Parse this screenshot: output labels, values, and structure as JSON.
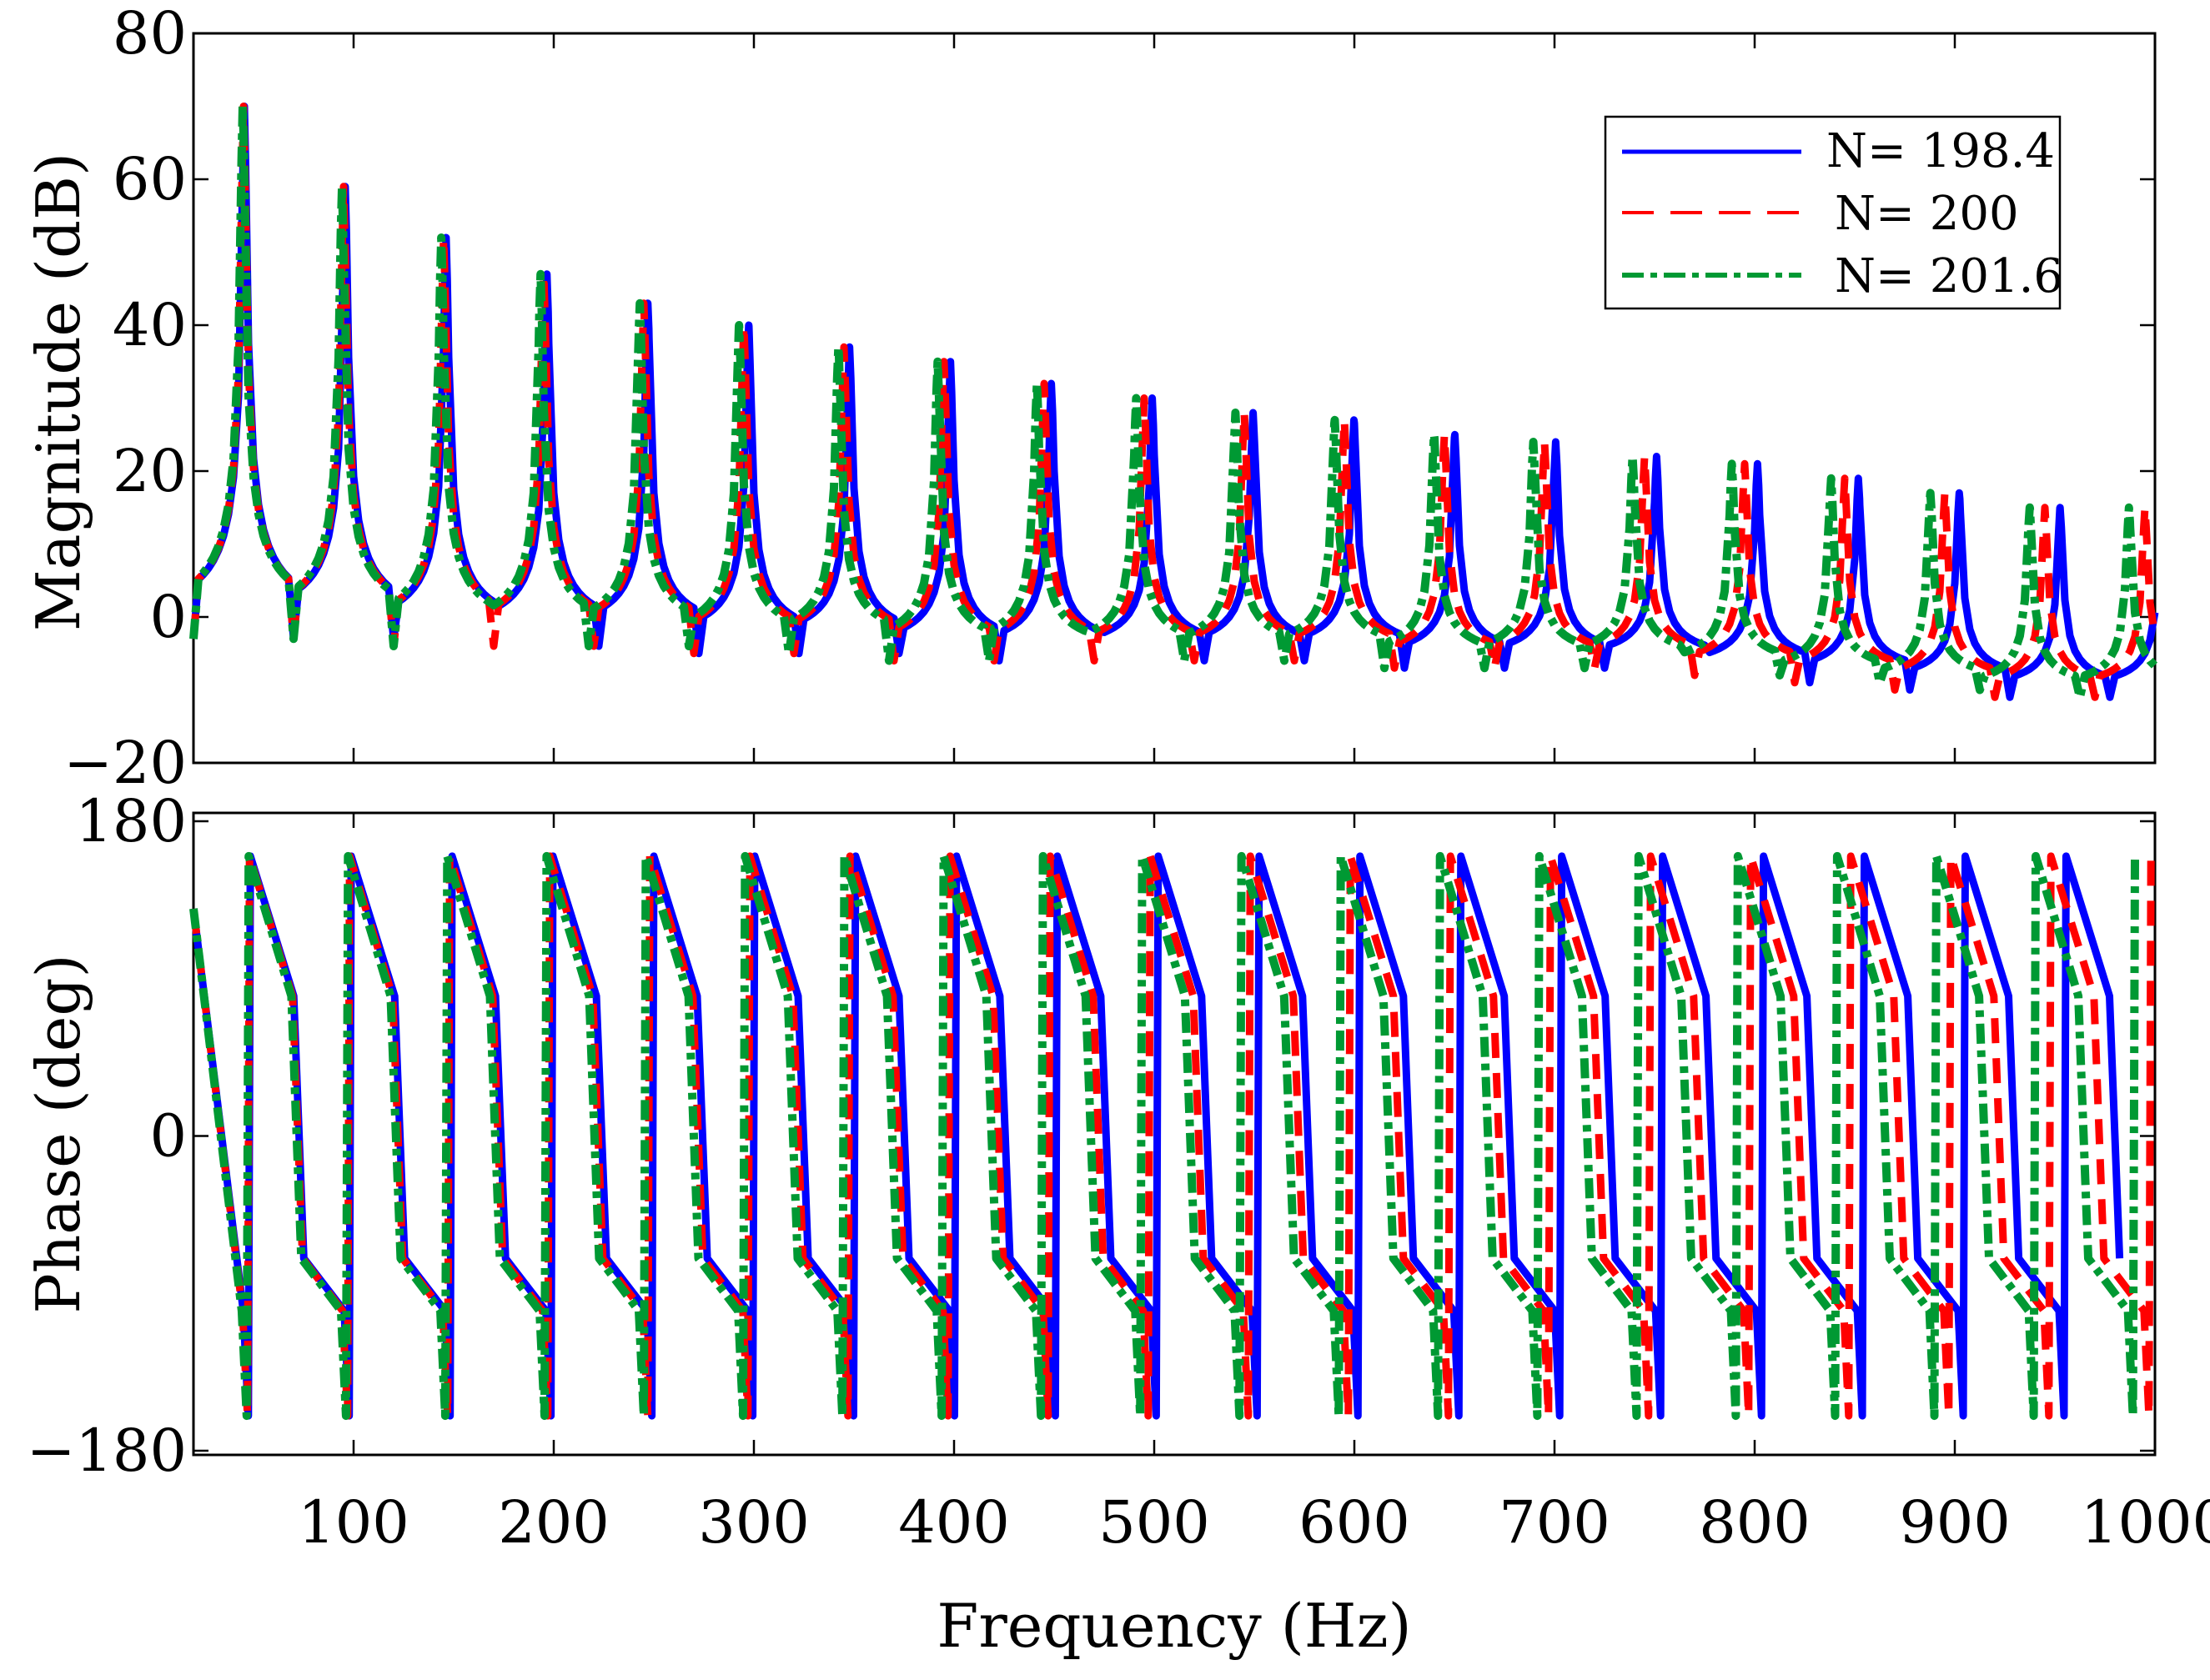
{
  "chart_data": [
    {
      "type": "line",
      "panel": "magnitude",
      "ylabel": "Magnitude  (dB)",
      "xlabel": "",
      "xlim": [
        20,
        1000
      ],
      "ylim": [
        -20,
        80
      ],
      "yticks": [
        -20,
        0,
        20,
        40,
        60,
        80
      ],
      "ytick_labels": [
        "−20",
        "0",
        "20",
        "40",
        "60",
        "80"
      ],
      "xticks": [
        100,
        200,
        300,
        400,
        500,
        600,
        700,
        800,
        900,
        1000
      ],
      "series": [
        {
          "name": "N= 198.4",
          "color": "#0000ff",
          "style": "solid",
          "resonance_spacing_hz": 50.4,
          "peak_db": [
            70,
            59,
            52,
            47,
            43,
            40,
            37,
            35,
            32,
            30,
            28,
            27,
            25,
            24,
            22,
            21,
            19,
            17,
            15
          ],
          "trough_db": [
            -3,
            -3,
            -3,
            -4,
            -4,
            -4,
            -5,
            -5,
            -6,
            -6,
            -6,
            -6,
            -6,
            -7,
            -7,
            -7,
            -8,
            -9,
            -10,
            -11
          ]
        },
        {
          "name": "N= 200",
          "color": "#ff0000",
          "style": "dashed",
          "resonance_spacing_hz": 50.0,
          "peak_db": [
            70,
            59,
            52,
            47,
            43,
            40,
            37,
            35,
            32,
            30,
            28,
            27,
            25,
            24,
            22,
            21,
            19,
            17,
            15
          ],
          "trough_db": [
            -3,
            -3,
            -3,
            -4,
            -4,
            -4,
            -5,
            -5,
            -6,
            -6,
            -6,
            -6,
            -6,
            -7,
            -7,
            -7,
            -8,
            -9,
            -10,
            -11
          ]
        },
        {
          "name": "N= 201.6",
          "color": "#009933",
          "style": "dashdot",
          "resonance_spacing_hz": 49.6,
          "peak_db": [
            70,
            59,
            52,
            47,
            43,
            40,
            37,
            35,
            32,
            30,
            28,
            27,
            25,
            24,
            22,
            21,
            19,
            17,
            15
          ],
          "trough_db": [
            -3,
            -3,
            -3,
            -4,
            -4,
            -4,
            -5,
            -5,
            -6,
            -6,
            -6,
            -6,
            -6,
            -7,
            -7,
            -7,
            -8,
            -9,
            -10,
            -11
          ]
        }
      ],
      "legend": {
        "placement": "top-right",
        "entries": [
          "N= 198.4",
          "N= 200",
          "N= 201.6"
        ]
      }
    },
    {
      "type": "line",
      "panel": "phase",
      "ylabel": "Phase  (deg)",
      "xlabel": "Frequency  (Hz)",
      "xlim": [
        20,
        1000
      ],
      "ylim": [
        -180,
        180
      ],
      "yticks": [
        -180,
        0,
        180
      ],
      "ytick_labels": [
        "−180",
        "0",
        "180"
      ],
      "xticks": [
        100,
        200,
        300,
        400,
        500,
        600,
        700,
        800,
        900,
        1000
      ],
      "xtick_labels": [
        "100",
        "200",
        "300",
        "400",
        "500",
        "600",
        "700",
        "800",
        "900",
        "1000"
      ],
      "phase_swing_deg": [
        -160,
        160
      ],
      "series": [
        {
          "name": "N= 198.4",
          "color": "#0000ff",
          "style": "solid",
          "resonance_spacing_hz": 50.4
        },
        {
          "name": "N= 200",
          "color": "#ff0000",
          "style": "dashed",
          "resonance_spacing_hz": 50.0
        },
        {
          "name": "N= 201.6",
          "color": "#009933",
          "style": "dashdot",
          "resonance_spacing_hz": 49.6
        }
      ]
    }
  ]
}
